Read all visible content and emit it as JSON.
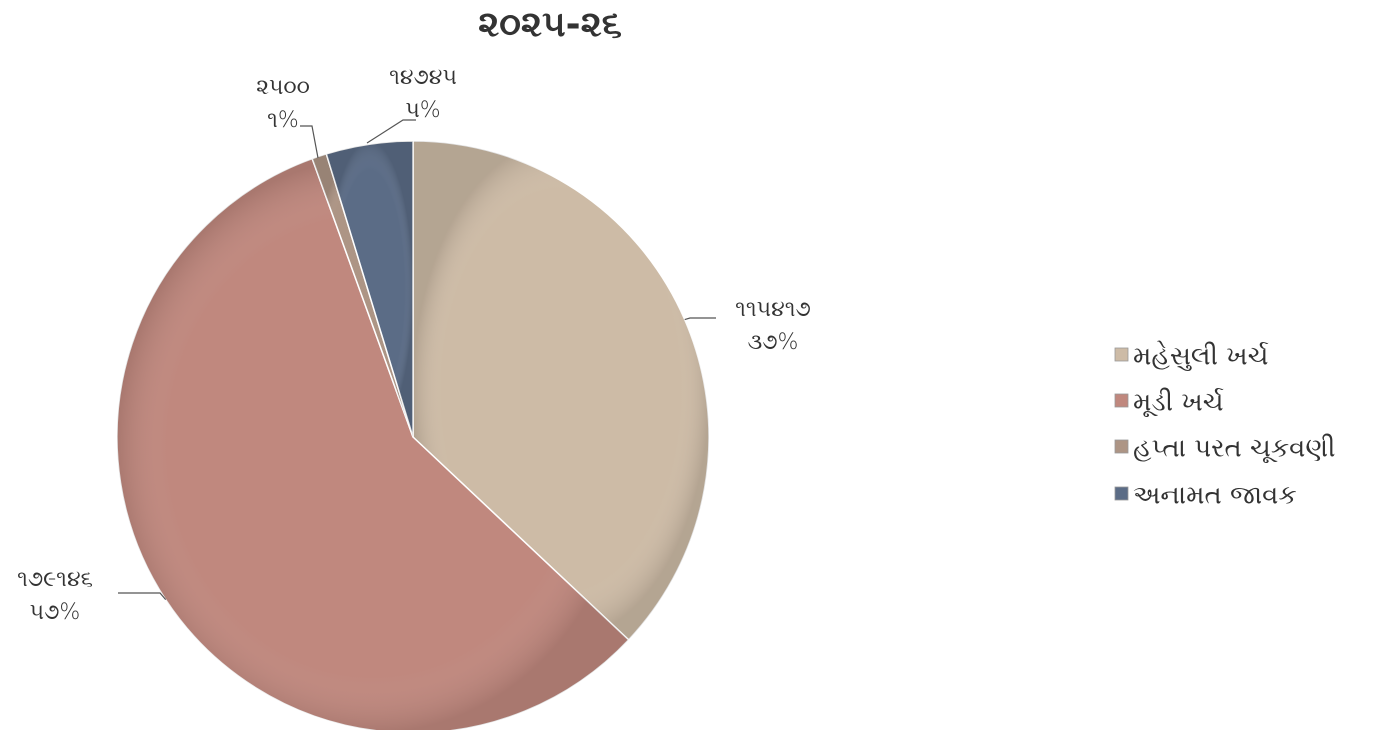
{
  "chart_data": {
    "type": "pie",
    "title": "૨૦૨૫-૨૬",
    "categories": [
      "મહેસુલી ખર્ચ",
      "મૂડી ખર્ચ",
      "હપ્તા પરત ચૂકવણી",
      "અનામત જાવક"
    ],
    "values": [
      115417,
      179146,
      2500,
      14745
    ],
    "value_labels": [
      "૧૧૫૪૧૭",
      "૧૭૯૧૪૬",
      "૨૫૦૦",
      "૧૪૭૪૫"
    ],
    "percent_labels": [
      "૩૭%",
      "૫૭%",
      "૧%",
      "૫%"
    ],
    "colors": [
      "#cdbba6",
      "#c0887e",
      "#ad9585",
      "#5b6c86"
    ],
    "legend": "right"
  }
}
